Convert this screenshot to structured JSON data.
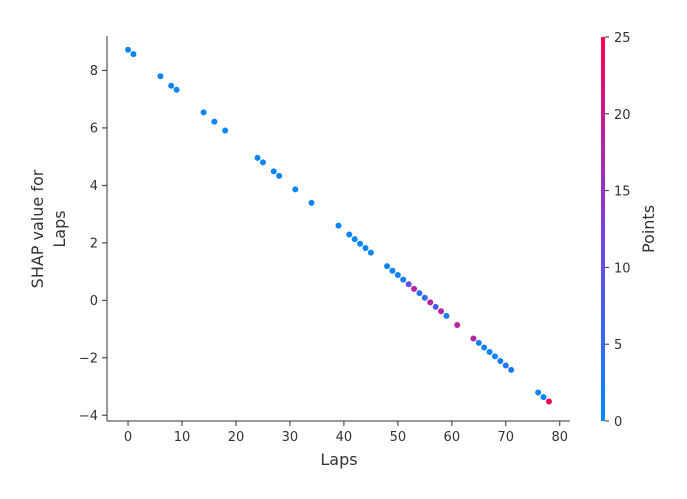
{
  "chart_data": {
    "type": "scatter",
    "title": "",
    "xlabel": "Laps",
    "ylabel": [
      "SHAP value for",
      "Laps"
    ],
    "xlim": [
      -3.9,
      81.9
    ],
    "ylim": [
      -4.2,
      9.2
    ],
    "x_ticks": [
      0,
      10,
      20,
      30,
      40,
      50,
      60,
      70,
      80
    ],
    "y_ticks": [
      -4,
      -2,
      0,
      2,
      4,
      6,
      8
    ],
    "grid": false,
    "colorbar": {
      "label": "Points",
      "range": [
        0,
        25
      ],
      "ticks": [
        0,
        5,
        10,
        15,
        20,
        25
      ],
      "color_low": "#008afb",
      "color_high": "#ff0051"
    },
    "points": [
      {
        "x": 0,
        "y": 8.72,
        "c": 1
      },
      {
        "x": 1,
        "y": 8.57,
        "c": 1
      },
      {
        "x": 6,
        "y": 7.8,
        "c": 1
      },
      {
        "x": 8,
        "y": 7.47,
        "c": 1
      },
      {
        "x": 9,
        "y": 7.33,
        "c": 1
      },
      {
        "x": 14,
        "y": 6.54,
        "c": 1
      },
      {
        "x": 16,
        "y": 6.22,
        "c": 1
      },
      {
        "x": 18,
        "y": 5.91,
        "c": 1
      },
      {
        "x": 24,
        "y": 4.96,
        "c": 1
      },
      {
        "x": 25,
        "y": 4.8,
        "c": 1
      },
      {
        "x": 27,
        "y": 4.49,
        "c": 1
      },
      {
        "x": 28,
        "y": 4.33,
        "c": 1
      },
      {
        "x": 31,
        "y": 3.86,
        "c": 1
      },
      {
        "x": 34,
        "y": 3.39,
        "c": 1
      },
      {
        "x": 39,
        "y": 2.6,
        "c": 1
      },
      {
        "x": 41,
        "y": 2.29,
        "c": 1
      },
      {
        "x": 42,
        "y": 2.13,
        "c": 1
      },
      {
        "x": 43,
        "y": 1.97,
        "c": 1
      },
      {
        "x": 44,
        "y": 1.82,
        "c": 1
      },
      {
        "x": 45,
        "y": 1.66,
        "c": 1
      },
      {
        "x": 48,
        "y": 1.19,
        "c": 1
      },
      {
        "x": 49,
        "y": 1.03,
        "c": 1
      },
      {
        "x": 50,
        "y": 0.88,
        "c": 1
      },
      {
        "x": 51,
        "y": 0.72,
        "c": 2
      },
      {
        "x": 52,
        "y": 0.56,
        "c": 10
      },
      {
        "x": 53,
        "y": 0.4,
        "c": 18
      },
      {
        "x": 54,
        "y": 0.25,
        "c": 4
      },
      {
        "x": 55,
        "y": 0.09,
        "c": 6
      },
      {
        "x": 56,
        "y": -0.07,
        "c": 18
      },
      {
        "x": 57,
        "y": -0.23,
        "c": 8
      },
      {
        "x": 58,
        "y": -0.38,
        "c": 18
      },
      {
        "x": 59,
        "y": -0.54,
        "c": 2
      },
      {
        "x": 61,
        "y": -0.86,
        "c": 18
      },
      {
        "x": 64,
        "y": -1.33,
        "c": 18
      },
      {
        "x": 65,
        "y": -1.48,
        "c": 2
      },
      {
        "x": 66,
        "y": -1.64,
        "c": 1
      },
      {
        "x": 67,
        "y": -1.8,
        "c": 1
      },
      {
        "x": 68,
        "y": -1.95,
        "c": 1
      },
      {
        "x": 69,
        "y": -2.11,
        "c": 2
      },
      {
        "x": 70,
        "y": -2.27,
        "c": 4
      },
      {
        "x": 71,
        "y": -2.42,
        "c": 3
      },
      {
        "x": 76,
        "y": -3.21,
        "c": 1
      },
      {
        "x": 77,
        "y": -3.37,
        "c": 1
      },
      {
        "x": 78,
        "y": -3.52,
        "c": 25
      }
    ]
  }
}
